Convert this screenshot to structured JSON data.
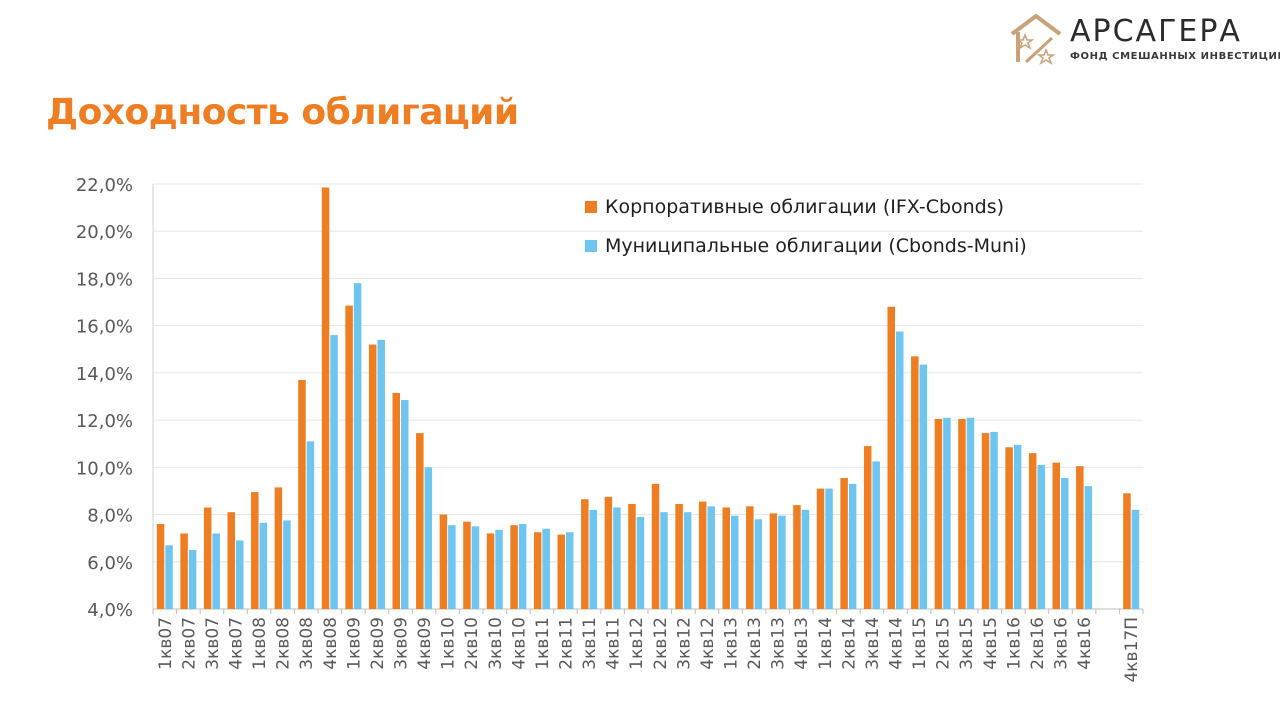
{
  "brand": {
    "name": "АРСАГЕРА",
    "tagline": "ФОНД СМЕШАННЫХ ИНВЕСТИЦИЙ",
    "colors": {
      "accent": "#ef7d22",
      "logo": "#c9a27a"
    }
  },
  "page": {
    "title": "Доходность облигаций"
  },
  "chart_data": {
    "type": "bar",
    "categories": [
      "1кв07",
      "2кв07",
      "3кв07",
      "4кв07",
      "1кв08",
      "2кв08",
      "3кв08",
      "4кв08",
      "1кв09",
      "2кв09",
      "3кв09",
      "4кв09",
      "1кв10",
      "2кв10",
      "3кв10",
      "4кв10",
      "1кв11",
      "2кв11",
      "3кв11",
      "4кв11",
      "1кв12",
      "2кв12",
      "3кв12",
      "4кв12",
      "1кв13",
      "2кв13",
      "3кв13",
      "4кв13",
      "1кв14",
      "2кв14",
      "3кв14",
      "4кв14",
      "1кв15",
      "2кв15",
      "3кв15",
      "4кв15",
      "1кв16",
      "2кв16",
      "3кв16",
      "4кв16",
      "",
      "4кв17П"
    ],
    "series": [
      {
        "name": "Корпоративные облигации (IFX-Cbonds)",
        "color": "#ef7d22",
        "values": [
          7.6,
          7.2,
          8.3,
          8.1,
          8.95,
          9.15,
          13.7,
          21.85,
          16.85,
          15.2,
          13.15,
          11.45,
          8.0,
          7.7,
          7.2,
          7.55,
          7.25,
          7.15,
          8.65,
          8.75,
          8.45,
          9.3,
          8.45,
          8.55,
          8.3,
          8.35,
          8.05,
          8.4,
          9.1,
          9.55,
          10.9,
          16.8,
          14.7,
          12.05,
          12.05,
          11.45,
          10.85,
          10.6,
          10.2,
          10.05,
          null,
          8.9
        ]
      },
      {
        "name": "Муниципальные облигации (Cbonds-Muni)",
        "color": "#6ec5ef",
        "values": [
          6.7,
          6.5,
          7.2,
          6.9,
          7.65,
          7.75,
          11.1,
          15.6,
          17.8,
          15.4,
          12.85,
          10.0,
          7.55,
          7.5,
          7.35,
          7.6,
          7.4,
          7.25,
          8.2,
          8.3,
          7.9,
          8.1,
          8.1,
          8.35,
          7.95,
          7.8,
          7.95,
          8.2,
          9.1,
          9.3,
          10.25,
          15.75,
          14.35,
          12.1,
          12.1,
          11.5,
          10.95,
          10.1,
          9.55,
          9.2,
          null,
          8.2
        ]
      }
    ],
    "y_ticks": [
      "4,0%",
      "6,0%",
      "8,0%",
      "10,0%",
      "12,0%",
      "14,0%",
      "16,0%",
      "18,0%",
      "20,0%",
      "22,0%"
    ],
    "ylim": [
      4,
      22
    ],
    "y_step": 2,
    "grid": true,
    "legend_position": "top-right"
  }
}
